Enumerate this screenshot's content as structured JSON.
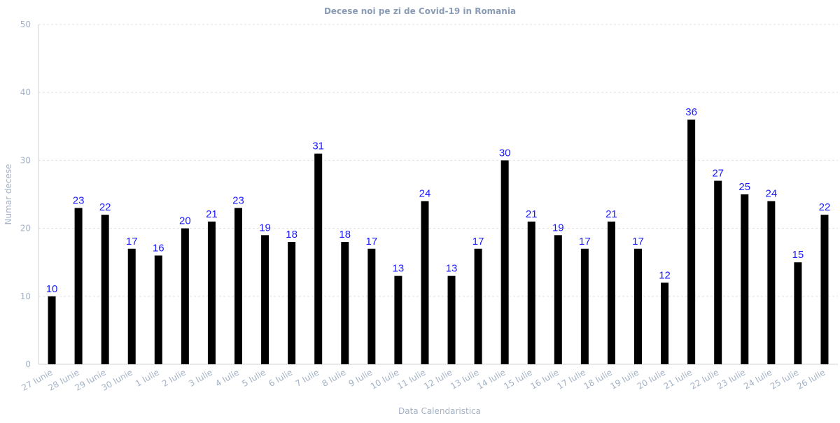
{
  "colors": {
    "bar": "#000000",
    "data_label": "#1a1aff",
    "title": "#8a9bb5",
    "axis_text": "#a3b2c6",
    "grid": "#e0e0e0",
    "axis_line": "#d0d0d0"
  },
  "chart_data": {
    "type": "bar",
    "title": "Decese noi pe zi de Covid-19 in Romania",
    "xlabel": "Data Calendaristica",
    "ylabel": "Numar decese",
    "ylim": [
      0,
      50
    ],
    "yticks": [
      0,
      10,
      20,
      30,
      40,
      50
    ],
    "grid": true,
    "categories": [
      "27 Iunie",
      "28 Iunie",
      "29 Iunie",
      "30 Iunie",
      "1 Iulie",
      "2 Iulie",
      "3 Iulie",
      "4 Iulie",
      "5 Iulie",
      "6 Iulie",
      "7 Iulie",
      "8 Iulie",
      "9 Iulie",
      "10 Iulie",
      "11 Iulie",
      "12 Iulie",
      "13 Iulie",
      "14 Iulie",
      "15 Iulie",
      "16 Iulie",
      "17 Iulie",
      "18 Iulie",
      "19 Iulie",
      "20 Iulie",
      "21 Iulie",
      "22 Iulie",
      "23 Iulie",
      "24 Iulie",
      "25 Iulie",
      "26 Iulie"
    ],
    "values": [
      10,
      23,
      22,
      17,
      16,
      20,
      21,
      23,
      19,
      18,
      31,
      18,
      17,
      13,
      24,
      13,
      17,
      30,
      21,
      19,
      17,
      21,
      17,
      12,
      36,
      27,
      25,
      24,
      15,
      22
    ]
  }
}
